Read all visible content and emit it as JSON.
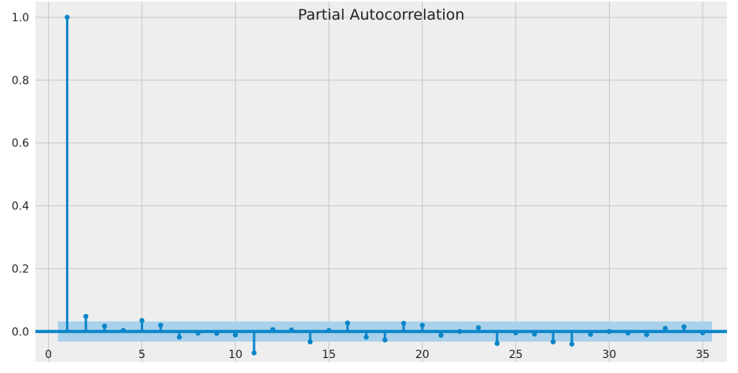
{
  "chart_data": {
    "type": "stem",
    "title": "Partial Autocorrelation",
    "xlabel": "",
    "ylabel": "",
    "xlim": [
      -0.7,
      36.3
    ],
    "ylim": [
      -0.097,
      1.05
    ],
    "x_ticks": [
      0,
      5,
      10,
      15,
      20,
      25,
      30,
      35
    ],
    "x_tick_labels": [
      "0",
      "5",
      "10",
      "15",
      "20",
      "25",
      "30",
      "35"
    ],
    "y_ticks": [
      0.0,
      0.2,
      0.4,
      0.6,
      0.8,
      1.0
    ],
    "y_tick_labels": [
      "0.0",
      "0.2",
      "0.4",
      "0.6",
      "0.8",
      "1.0"
    ],
    "grid": true,
    "confidence_band": {
      "x_range": [
        0.5,
        35.5
      ],
      "lower": -0.032,
      "upper": 0.032
    },
    "series": [
      {
        "x": [
          1,
          2,
          3,
          4,
          5,
          6,
          7,
          8,
          9,
          10,
          11,
          12,
          13,
          14,
          15,
          16,
          17,
          18,
          19,
          20,
          21,
          22,
          23,
          24,
          25,
          26,
          27,
          28,
          29,
          30,
          31,
          32,
          33,
          34,
          35
        ],
        "values": [
          1.0,
          0.048,
          0.017,
          0.003,
          0.035,
          0.02,
          -0.018,
          -0.005,
          -0.006,
          -0.011,
          -0.068,
          0.006,
          0.005,
          -0.033,
          0.003,
          0.027,
          -0.018,
          -0.027,
          0.026,
          0.02,
          -0.012,
          0.0,
          0.012,
          -0.038,
          -0.004,
          -0.008,
          -0.033,
          -0.04,
          -0.009,
          0.0,
          -0.005,
          -0.01,
          0.01,
          0.015,
          -0.004
        ]
      }
    ],
    "colors": {
      "stem": "#0a85c9",
      "marker": "#0a85c9",
      "zero_line": "#0a85c9",
      "band": "#a9d1ec",
      "plot_bg": "#eeeeee",
      "grid": "#c6c6c6"
    }
  }
}
